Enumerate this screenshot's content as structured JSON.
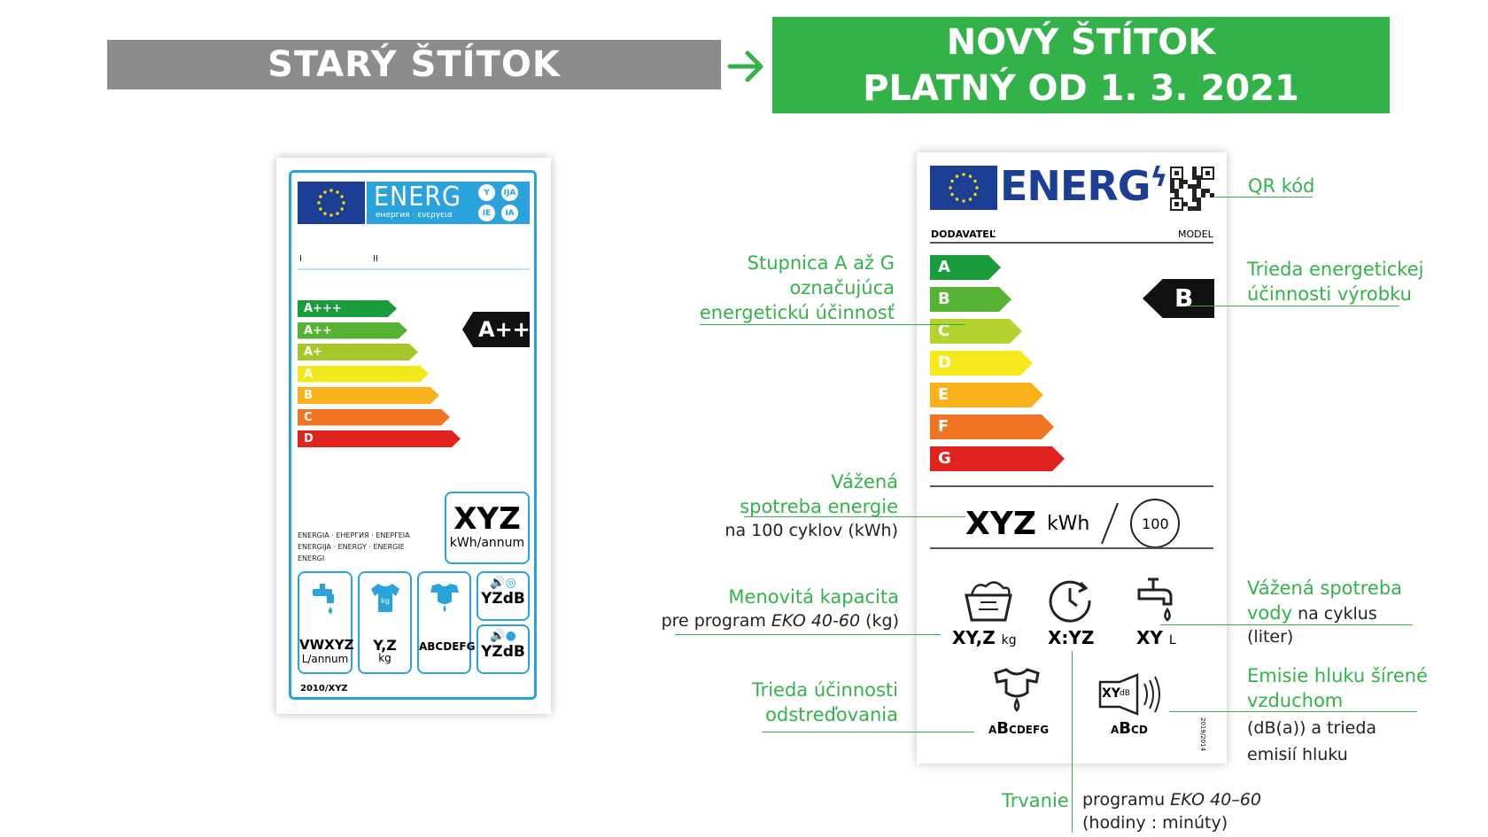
{
  "headers": {
    "old_label": "STARÝ ŠTÍTOK",
    "new_label_line1": "NOVÝ ŠTÍTOK",
    "new_label_line2": "PLATNÝ OD 1. 3. 2021"
  },
  "colors": {
    "green": "#34b24a",
    "gray": "#8c8c8c",
    "eu_blue": "#1d3e95",
    "old_blue": "#2aa3dc"
  },
  "old_label": {
    "energ": "ENERG",
    "energ_sub": "енергия · ενεργεια",
    "lang_badges": [
      "Y",
      "IJA",
      "IE",
      "IA"
    ],
    "roman_1": "I",
    "roman_2": "II",
    "classes": [
      "A+++",
      "A++",
      "A+",
      "A",
      "B",
      "C",
      "D"
    ],
    "class_colors": [
      "#1a9b3c",
      "#56b233",
      "#a6c72a",
      "#f3e81c",
      "#f9b21c",
      "#ef7423",
      "#e0231e"
    ],
    "rating": "A++",
    "energy_words": [
      "ENERGIA · ЕНЕРГИЯ · ΕΝΕΡΓΕΙΑ",
      "ENERGIJA · ENERGY · ENERGIE",
      "ENERGI"
    ],
    "xyz": "XYZ",
    "xyz_unit": "kWh/annum",
    "water_value": "VWXYZ",
    "water_unit": "L/annum",
    "capacity_value": "Y,Z",
    "capacity_unit": "kg",
    "spin_classes": "ABCDEFG",
    "noise_value_1": "YZdB",
    "noise_value_2": "YZdB",
    "regulation": "2010/XYZ"
  },
  "new_label": {
    "energ": "ENERG",
    "supplier": "DODAVATEĽ",
    "model": "MODEL",
    "classes": [
      "A",
      "B",
      "C",
      "D",
      "E",
      "F",
      "G"
    ],
    "class_colors": [
      "#1a9b3c",
      "#56b233",
      "#b5d32f",
      "#f5e81b",
      "#f9b21c",
      "#ef7423",
      "#e0231e"
    ],
    "rating": "B",
    "energy_value": "XYZ",
    "energy_unit": "kWh",
    "cycles": "100",
    "capacity_value": "XY,Z",
    "capacity_unit": "kg",
    "duration_value": "X:YZ",
    "water_value": "XY",
    "water_unit": "L",
    "spin_classes_a": "A",
    "spin_classes_b": "B",
    "spin_classes_rest": "CDEFG",
    "noise_value": "XY",
    "noise_unit": "dB",
    "noise_classes_a": "A",
    "noise_classes_b": "B",
    "noise_classes_rest": "CD",
    "side_code": "2019/2014"
  },
  "annotations": {
    "qr": "QR kód",
    "scale_1": "Stupnica A až G",
    "scale_2": "označujúca",
    "scale_3": "energetickú účinnosť",
    "class_1": "Trieda energetickej",
    "class_2": "účinnosti výrobku",
    "energy_1": "Vážená",
    "energy_2": "spotreba energie",
    "energy_3": "na 100 cyklov (kWh)",
    "capacity_1": "Menovitá kapacita",
    "capacity_2_pre": "pre program ",
    "capacity_2_em": "EKO 40-60",
    "capacity_2_post": " (kg)",
    "water_1": "Vážená spotreba",
    "water_2": "vody",
    "water_2_dark": " na cyklus",
    "water_3": "(liter)",
    "spin_1": "Trieda účinnosti",
    "spin_2": "odstreďovania",
    "noise_1": "Emisie hluku šírené",
    "noise_2": "vzduchom",
    "noise_3": "(dB(a)) a trieda",
    "noise_4": "emisií hluku",
    "duration_1": "Trvanie",
    "duration_2_pre": "programu ",
    "duration_2_em": "EKO 40–60",
    "duration_3": "(hodiny : minúty)"
  }
}
